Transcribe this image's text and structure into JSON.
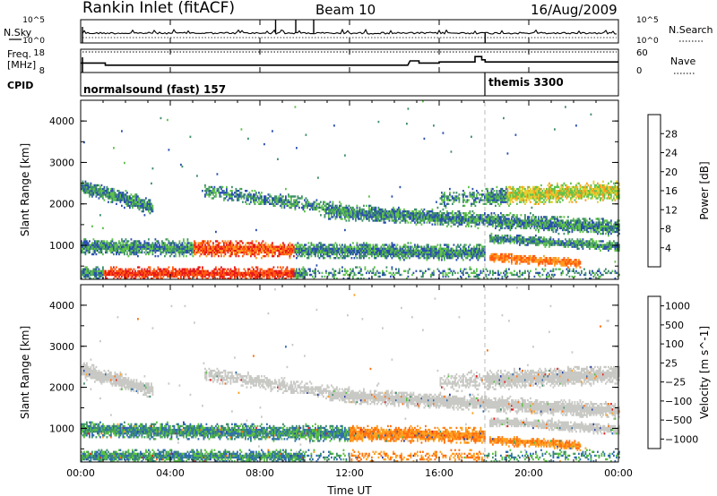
{
  "header": {
    "station": "Rankin Inlet (fitACF)",
    "beam": "Beam 10",
    "date": "16/Aug/2009"
  },
  "strip_labels": {
    "nsky": "N.Sky",
    "nsearch": "N.Search",
    "freq_line1": "Freq.",
    "freq_line2": "[MHz]",
    "nave": "Nave",
    "cpid": "CPID",
    "nsky_ticks": [
      "10^5",
      "10^0"
    ],
    "freq_ticks": [
      "18",
      "8"
    ],
    "nave_ticks": [
      "60",
      "0"
    ]
  },
  "cpid_segments": [
    {
      "label": "normalsound (fast) 157",
      "start_hour": 0
    },
    {
      "label": "themis 3300",
      "start_hour": 18.05
    }
  ],
  "time_axis": {
    "label": "Time UT",
    "ticks": [
      "00:00",
      "04:00",
      "08:00",
      "12:00",
      "16:00",
      "20:00",
      "00:00"
    ],
    "range_hours": [
      0,
      24
    ]
  },
  "colors": {
    "power_scale": [
      "#1a1aff",
      "#2a4fb0",
      "#3f8f6a",
      "#5fc24a",
      "#e0d030",
      "#ff9a20",
      "#ff5a10",
      "#e61a1a"
    ],
    "velocity_scale": [
      "#2a3fa8",
      "#2e6cb0",
      "#3f8f6a",
      "#58c040",
      "#c8c8c4",
      "#ffa020",
      "#ff7010",
      "#e61a1a"
    ]
  },
  "chart_data": [
    {
      "type": "line",
      "panel": "N.Sky / N.Search",
      "ylabel": "N.Sky",
      "ylabel_right": "N.Search",
      "ylim": [
        "10^0",
        "10^5"
      ],
      "spike_hours": [
        8.7,
        9.6,
        10.4,
        18.05
      ]
    },
    {
      "type": "line",
      "panel": "Frequency / Nave",
      "ylabel": "Freq. [MHz]",
      "ylabel_right": "Nave",
      "ylim": [
        8,
        18
      ],
      "ylim_right": [
        0,
        60
      ],
      "x_hours": [
        0,
        1.1,
        1.1,
        14.6,
        14.7,
        15.1,
        15.1,
        16.0,
        16.0,
        17.6,
        17.6,
        17.9,
        17.9,
        18.05,
        18.05,
        24
      ],
      "freq_mhz": [
        12,
        12,
        11,
        11,
        13,
        13,
        12,
        12,
        12.5,
        12.5,
        15,
        15,
        13.5,
        13.5,
        12.5,
        12.5
      ]
    },
    {
      "type": "heatmap",
      "panel": "Power",
      "ylabel": "Slant Range [km]",
      "xlabel": "",
      "colorbar_label": "Power [dB]",
      "colorbar_ticks": [
        "28",
        "24",
        "20",
        "16",
        "12",
        "8",
        "4"
      ],
      "yticks": [
        "1000",
        "2000",
        "3000",
        "4000"
      ],
      "ylim": [
        180,
        4500
      ],
      "xlim_hours": [
        0,
        24
      ]
    },
    {
      "type": "heatmap",
      "panel": "Velocity",
      "ylabel": "Slant Range [km]",
      "xlabel": "Time UT",
      "colorbar_label": "Velocity [m s^-1]",
      "colorbar_ticks": [
        "1000",
        "500",
        "100",
        "25",
        "−25",
        "−100",
        "−500",
        "−1000"
      ],
      "yticks": [
        "1000",
        "2000",
        "3000",
        "4000"
      ],
      "ylim": [
        180,
        4500
      ],
      "xlim_hours": [
        0,
        24
      ]
    }
  ]
}
